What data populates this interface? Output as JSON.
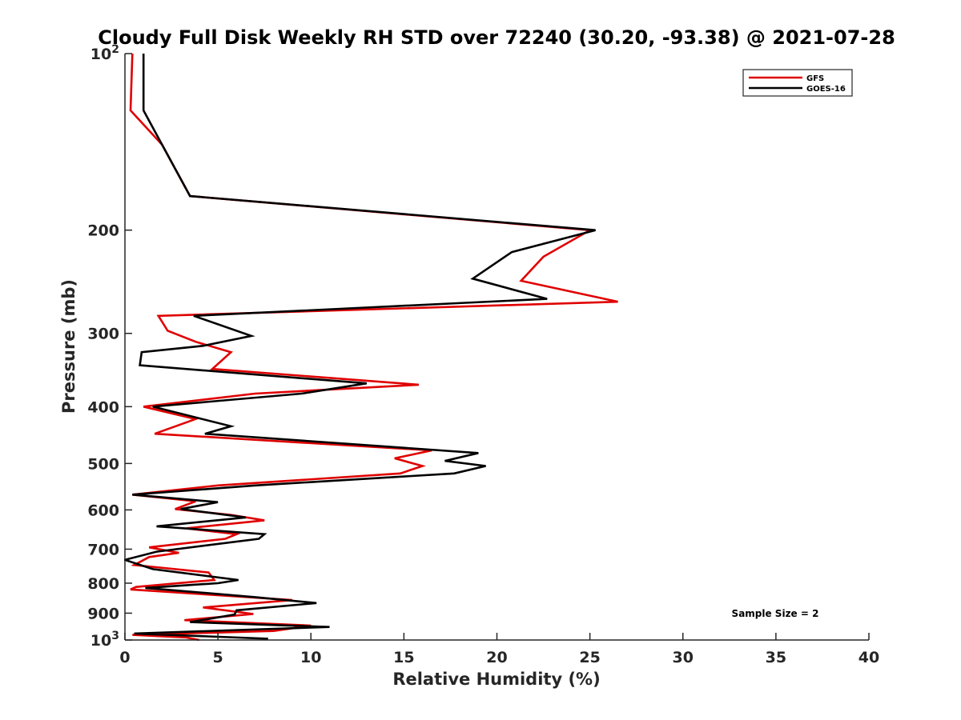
{
  "chart_data": {
    "type": "line",
    "title": "Cloudy Full Disk Weekly RH STD over 72240 (30.20, -93.38) @ 2021-07-28",
    "xlabel": "Relative Humidity (%)",
    "ylabel": "Pressure (mb)",
    "xlim": [
      0,
      40
    ],
    "ylim": [
      100,
      1000
    ],
    "yscale": "log",
    "yreverse": true,
    "grid": false,
    "x_ticks": [
      0,
      5,
      10,
      15,
      20,
      25,
      30,
      35,
      40
    ],
    "x_tick_labels": [
      "0",
      "5",
      "10",
      "15",
      "20",
      "25",
      "30",
      "35",
      "40"
    ],
    "y_ticks": [
      100,
      200,
      300,
      400,
      500,
      600,
      700,
      800,
      900,
      1000
    ],
    "y_tick_labels": [
      {
        "base": "10",
        "exp": "2"
      },
      {
        "base": "200",
        "exp": ""
      },
      {
        "base": "300",
        "exp": ""
      },
      {
        "base": "400",
        "exp": ""
      },
      {
        "base": "500",
        "exp": ""
      },
      {
        "base": "600",
        "exp": ""
      },
      {
        "base": "700",
        "exp": ""
      },
      {
        "base": "800",
        "exp": ""
      },
      {
        "base": "900",
        "exp": ""
      },
      {
        "base": "10",
        "exp": "3"
      }
    ],
    "legend_position": "top-right",
    "annotation": "Sample Size = 2",
    "series": [
      {
        "name": "GFS",
        "color": "#e00000",
        "points": [
          [
            0.4,
            100
          ],
          [
            0.3,
            125
          ],
          [
            2.0,
            143
          ],
          [
            3.5,
            175
          ],
          [
            25.0,
            200
          ],
          [
            22.5,
            222
          ],
          [
            21.3,
            244
          ],
          [
            26.5,
            265
          ],
          [
            1.8,
            280
          ],
          [
            2.3,
            297
          ],
          [
            3.8,
            310
          ],
          [
            5.7,
            323
          ],
          [
            4.7,
            345
          ],
          [
            15.8,
            367
          ],
          [
            7.0,
            380
          ],
          [
            1.0,
            400
          ],
          [
            3.8,
            420
          ],
          [
            1.6,
            445
          ],
          [
            16.5,
            475
          ],
          [
            14.5,
            490
          ],
          [
            16.0,
            505
          ],
          [
            14.8,
            520
          ],
          [
            5.0,
            545
          ],
          [
            0.4,
            565
          ],
          [
            3.8,
            580
          ],
          [
            2.7,
            598
          ],
          [
            5.7,
            612
          ],
          [
            7.5,
            625
          ],
          [
            3.3,
            645
          ],
          [
            6.0,
            660
          ],
          [
            5.4,
            672
          ],
          [
            1.3,
            695
          ],
          [
            2.9,
            710
          ],
          [
            1.3,
            722
          ],
          [
            0.5,
            745
          ],
          [
            4.5,
            767
          ],
          [
            4.8,
            790
          ],
          [
            0.6,
            812
          ],
          [
            0.3,
            820
          ],
          [
            9.0,
            855
          ],
          [
            4.2,
            880
          ],
          [
            6.9,
            903
          ],
          [
            3.2,
            925
          ],
          [
            10.0,
            945
          ],
          [
            8.0,
            965
          ],
          [
            0.4,
            980
          ],
          [
            3.3,
            990
          ],
          [
            4.0,
            1000
          ]
        ]
      },
      {
        "name": "GOES-16",
        "color": "#000000",
        "points": [
          [
            1.0,
            100
          ],
          [
            1.0,
            125
          ],
          [
            2.0,
            143
          ],
          [
            3.5,
            175
          ],
          [
            25.3,
            200
          ],
          [
            20.8,
            218
          ],
          [
            18.7,
            242
          ],
          [
            22.7,
            262
          ],
          [
            3.7,
            280
          ],
          [
            6.8,
            303
          ],
          [
            4.2,
            315
          ],
          [
            0.9,
            323
          ],
          [
            0.8,
            340
          ],
          [
            13.0,
            365
          ],
          [
            9.5,
            380
          ],
          [
            1.5,
            400
          ],
          [
            5.7,
            432
          ],
          [
            4.3,
            445
          ],
          [
            19.0,
            480
          ],
          [
            17.2,
            495
          ],
          [
            19.4,
            505
          ],
          [
            17.7,
            520
          ],
          [
            7.0,
            545
          ],
          [
            0.4,
            565
          ],
          [
            5.0,
            582
          ],
          [
            3.0,
            598
          ],
          [
            6.5,
            618
          ],
          [
            1.7,
            640
          ],
          [
            7.5,
            660
          ],
          [
            7.2,
            672
          ],
          [
            1.7,
            707
          ],
          [
            0.0,
            730
          ],
          [
            1.5,
            757
          ],
          [
            6.1,
            790
          ],
          [
            5.0,
            800
          ],
          [
            1.1,
            815
          ],
          [
            7.0,
            845
          ],
          [
            10.3,
            865
          ],
          [
            6.0,
            890
          ],
          [
            5.9,
            905
          ],
          [
            3.5,
            932
          ],
          [
            11.0,
            950
          ],
          [
            0.5,
            975
          ],
          [
            7.7,
            995
          ]
        ]
      }
    ]
  }
}
